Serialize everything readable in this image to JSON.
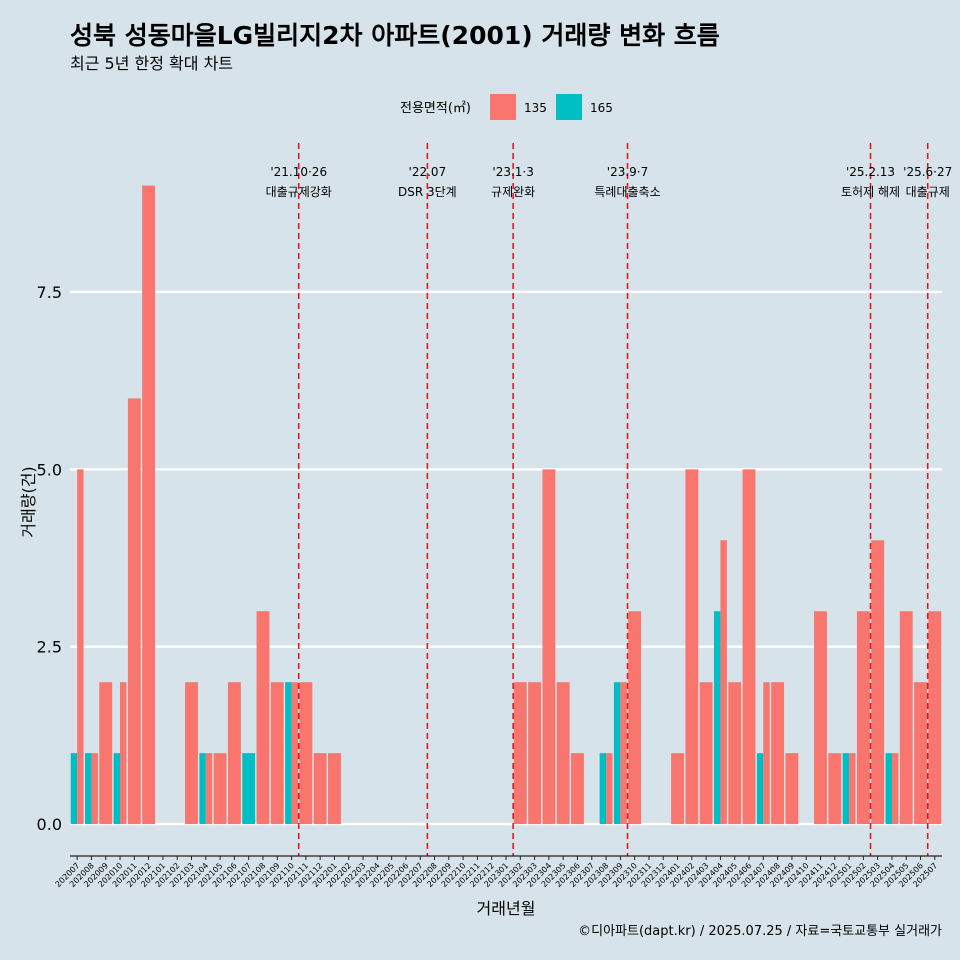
{
  "chart_data": {
    "type": "bar",
    "title": "성북 성동마을LG빌리지2차 아파트(2001) 거래량 변화 흐름",
    "subtitle": "최근 5년 한정 확대 차트",
    "xlabel": "거래년월",
    "ylabel": "거래량(건)",
    "caption": "©디아파트(dapt.kr) / 2025.07.25 / 자료=국토교통부 실거래가",
    "legend_title": "전용면적(㎡)",
    "legend_position": "top",
    "grid": "horizontal",
    "ylim": [
      -0.45,
      9.6
    ],
    "yticks": [
      "0.0",
      "2.5",
      "5.0",
      "7.5"
    ],
    "ytick_values": [
      0,
      2.5,
      5,
      7.5
    ],
    "categories": [
      "202007",
      "202008",
      "202009",
      "202010",
      "202011",
      "202012",
      "202101",
      "202102",
      "202103",
      "202104",
      "202105",
      "202106",
      "202107",
      "202108",
      "202109",
      "202110",
      "202111",
      "202112",
      "202201",
      "202202",
      "202203",
      "202204",
      "202205",
      "202206",
      "202207",
      "202208",
      "202209",
      "202210",
      "202211",
      "202212",
      "202301",
      "202302",
      "202303",
      "202304",
      "202305",
      "202306",
      "202307",
      "202308",
      "202309",
      "202310",
      "202311",
      "202312",
      "202401",
      "202402",
      "202403",
      "202404",
      "202405",
      "202406",
      "202407",
      "202408",
      "202409",
      "202410",
      "202411",
      "202412",
      "202501",
      "202502",
      "202503",
      "202504",
      "202505",
      "202506",
      "202507"
    ],
    "series": [
      {
        "name": "135",
        "color": "#F8766D",
        "values": [
          5,
          1,
          2,
          2,
          6,
          9,
          0,
          0,
          2,
          1,
          1,
          2,
          0,
          3,
          2,
          2,
          2,
          1,
          1,
          0,
          0,
          0,
          0,
          0,
          0,
          0,
          0,
          0,
          0,
          0,
          0,
          2,
          2,
          5,
          2,
          1,
          0,
          1,
          2,
          3,
          0,
          0,
          1,
          5,
          2,
          4,
          2,
          5,
          2,
          2,
          1,
          0,
          3,
          1,
          1,
          3,
          4,
          1,
          3,
          2,
          3
        ]
      },
      {
        "name": "165",
        "color": "#00BFC4",
        "values": [
          1,
          1,
          0,
          1,
          0,
          0,
          0,
          0,
          0,
          1,
          0,
          0,
          1,
          0,
          0,
          2,
          0,
          0,
          0,
          0,
          0,
          0,
          0,
          0,
          0,
          0,
          0,
          0,
          0,
          0,
          0,
          0,
          0,
          0,
          0,
          0,
          0,
          1,
          2,
          0,
          0,
          0,
          0,
          0,
          0,
          3,
          0,
          0,
          1,
          0,
          0,
          0,
          0,
          0,
          1,
          0,
          0,
          1,
          0,
          0,
          0
        ]
      }
    ],
    "annotations": [
      {
        "x": 15.5,
        "line1": "'21.10·26",
        "line2": "대출규제강화"
      },
      {
        "x": 24.5,
        "line1": "'22.07",
        "line2": "DSR 3단계"
      },
      {
        "x": 30.5,
        "line1": "'23.1·3",
        "line2": "규제완화"
      },
      {
        "x": 38.5,
        "line1": "'23.9·7",
        "line2": "특례대출축소"
      },
      {
        "x": 55.5,
        "line1": "'25.2.13",
        "line2": "토허제 해제"
      },
      {
        "x": 59.5,
        "line1": "'25.6·27",
        "line2": "대출규제"
      }
    ]
  }
}
